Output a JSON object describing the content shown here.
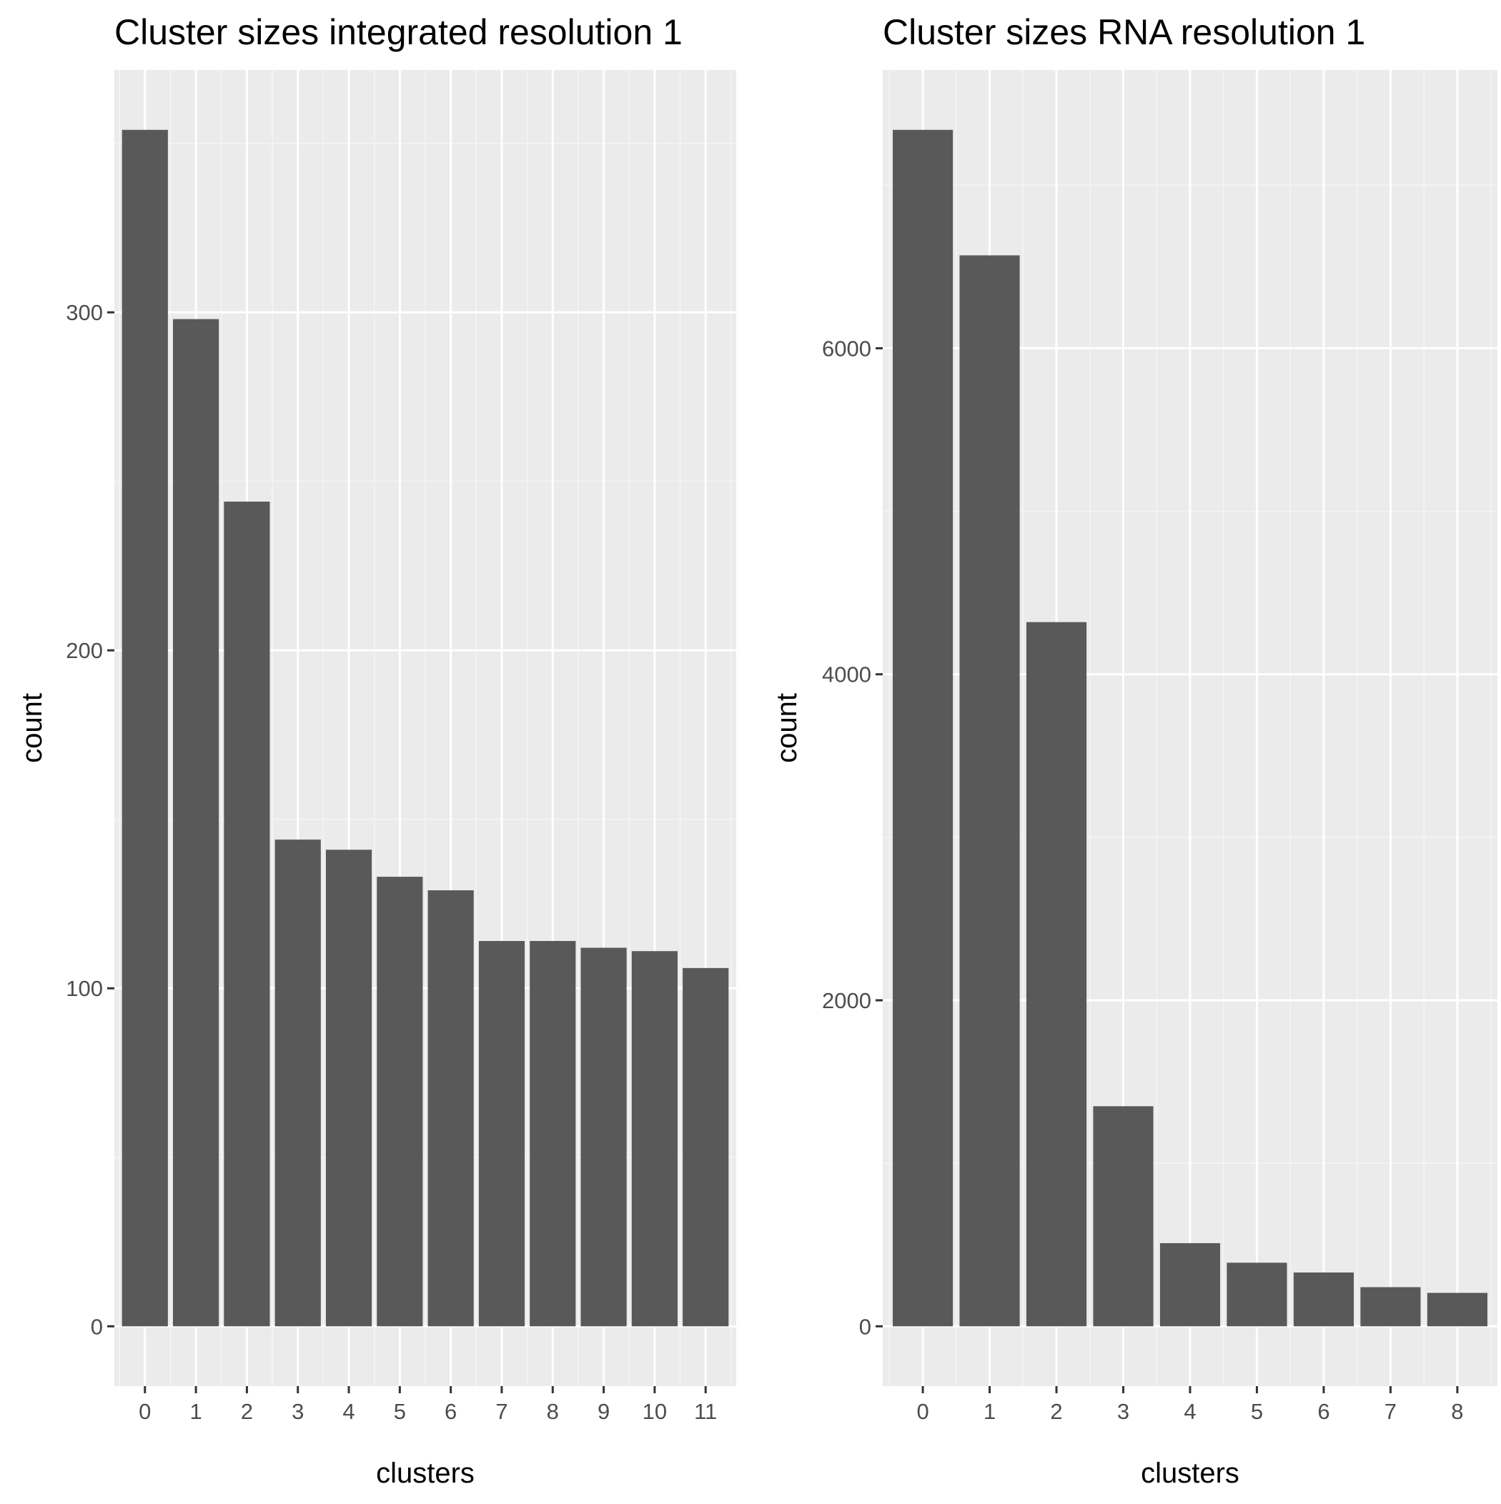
{
  "colors": {
    "panel_background": "#ebebeb",
    "grid_major": "#ffffff",
    "grid_minor": "#f5f5f5",
    "bar_fill": "#595959",
    "tick_mark": "#333333",
    "tick_text": "#4d4d4d",
    "title_text": "#000000"
  },
  "chart_data": [
    {
      "type": "bar",
      "title": "Cluster sizes integrated resolution 1",
      "xlabel": "clusters",
      "ylabel": "count",
      "categories": [
        "0",
        "1",
        "2",
        "3",
        "4",
        "5",
        "6",
        "7",
        "8",
        "9",
        "10",
        "11"
      ],
      "values": [
        354,
        298,
        244,
        144,
        141,
        133,
        129,
        114,
        114,
        112,
        111,
        106
      ],
      "y_ticks": [
        0,
        100,
        200,
        300
      ],
      "y_tick_labels": [
        "0",
        "100",
        "200",
        "300"
      ],
      "ylim": [
        -17.7,
        371.7
      ],
      "grid": true,
      "legend": "none"
    },
    {
      "type": "bar",
      "title": "Cluster sizes RNA resolution 1",
      "xlabel": "clusters",
      "ylabel": "count",
      "categories": [
        "0",
        "1",
        "2",
        "3",
        "4",
        "5",
        "6",
        "7",
        "8"
      ],
      "values": [
        7340,
        6570,
        4320,
        1350,
        510,
        390,
        330,
        240,
        205
      ],
      "y_ticks": [
        0,
        2000,
        4000,
        6000
      ],
      "y_tick_labels": [
        "0",
        "2000",
        "4000",
        "6000"
      ],
      "ylim": [
        -367,
        7707
      ],
      "grid": true,
      "legend": "none"
    }
  ]
}
